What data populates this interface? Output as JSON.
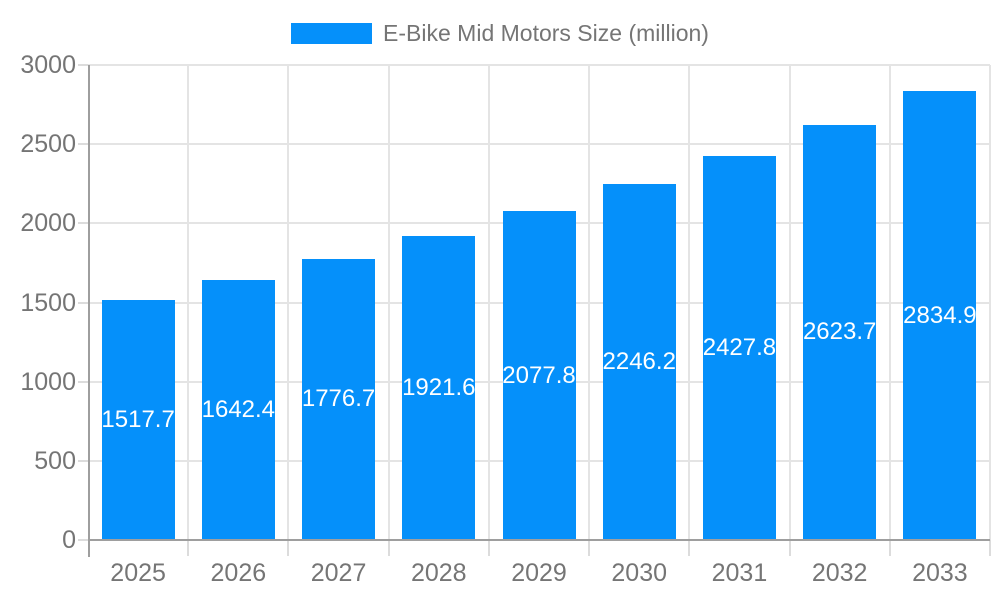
{
  "chart_data": {
    "type": "bar",
    "title": "E-Bike Mid Motors Size (million)",
    "legend": [
      "E-Bike Mid Motors Size (million)"
    ],
    "legend_position": "top",
    "categories": [
      "2025",
      "2026",
      "2027",
      "2028",
      "2029",
      "2030",
      "2031",
      "2032",
      "2033"
    ],
    "values": [
      1517.7,
      1642.4,
      1776.7,
      1921.6,
      2077.8,
      2246.2,
      2427.8,
      2623.7,
      2834.9
    ],
    "xlabel": "",
    "ylabel": "",
    "ylim": [
      0,
      3000
    ],
    "y_ticks": [
      0,
      500,
      1000,
      1500,
      2000,
      2500,
      3000
    ],
    "grid": true,
    "value_labels": "inside-bar, centered, white",
    "colors": {
      "bar": "#0590fa",
      "value_label_text": "#ffffff",
      "axis_text": "#757575",
      "legend_text": "#757575",
      "gridline": "#e4e4e4",
      "tick": "#dcdcdc",
      "axis_line": "#9e9e9e",
      "background": "#ffffff"
    }
  }
}
